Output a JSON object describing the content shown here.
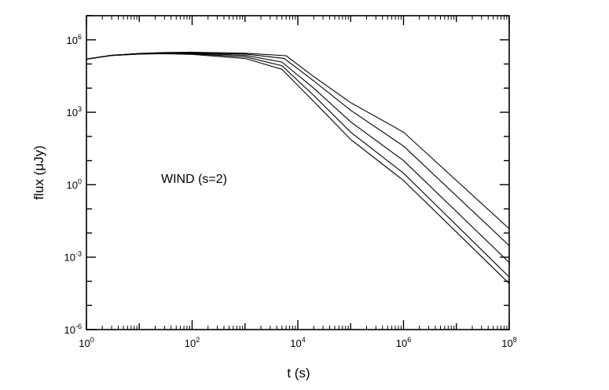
{
  "chart_data": {
    "type": "line",
    "xlabel": "t (s)",
    "ylabel": "flux (μJy)",
    "xscale": "log",
    "yscale": "log",
    "xlim": [
      1,
      100000000
    ],
    "ylim": [
      1e-06,
      10000000
    ],
    "grid": false,
    "annotation": "WIND (s=2)",
    "x_ticks": [
      {
        "value": 1,
        "base": "10",
        "exp": "0"
      },
      {
        "value": 100,
        "base": "10",
        "exp": "2"
      },
      {
        "value": 10000,
        "base": "10",
        "exp": "4"
      },
      {
        "value": 1000000,
        "base": "10",
        "exp": "6"
      },
      {
        "value": 100000000,
        "base": "10",
        "exp": "8"
      }
    ],
    "y_ticks": [
      {
        "value": 1e-06,
        "base": "10",
        "exp": "-6"
      },
      {
        "value": 0.001,
        "base": "10",
        "exp": "-3"
      },
      {
        "value": 1,
        "base": "10",
        "exp": "0"
      },
      {
        "value": 1000,
        "base": "10",
        "exp": "3"
      },
      {
        "value": 1000000,
        "base": "10",
        "exp": "6"
      }
    ],
    "series": [
      {
        "x": [
          1,
          3,
          10,
          30,
          100,
          1000,
          6000,
          20000,
          100000,
          1000000,
          100000000
        ],
        "y": [
          160000,
          230000,
          275000,
          300000,
          305000,
          280000,
          220000,
          30000,
          2500,
          150,
          0.015
        ]
      },
      {
        "x": [
          1,
          3,
          10,
          30,
          100,
          1000,
          5500,
          20000,
          100000,
          1000000,
          100000000
        ],
        "y": [
          160000,
          230000,
          270000,
          295000,
          295000,
          260000,
          170000,
          20000,
          1200,
          40,
          0.003
        ]
      },
      {
        "x": [
          1,
          3,
          10,
          30,
          100,
          1000,
          5000,
          20000,
          100000,
          1000000,
          100000000
        ],
        "y": [
          160000,
          225000,
          265000,
          285000,
          280000,
          230000,
          120000,
          10000,
          400,
          10,
          0.0006
        ]
      },
      {
        "x": [
          1,
          3,
          10,
          30,
          100,
          1000,
          5000,
          20000,
          100000,
          1000000,
          100000000
        ],
        "y": [
          160000,
          225000,
          260000,
          275000,
          265000,
          200000,
          85000,
          5000,
          150,
          3,
          0.00015
        ]
      },
      {
        "x": [
          1,
          3,
          10,
          30,
          100,
          1000,
          5000,
          20000,
          100000,
          1000000,
          100000000
        ],
        "y": [
          160000,
          225000,
          255000,
          265000,
          250000,
          170000,
          60000,
          2800,
          75,
          1.5,
          8e-05
        ]
      }
    ]
  }
}
